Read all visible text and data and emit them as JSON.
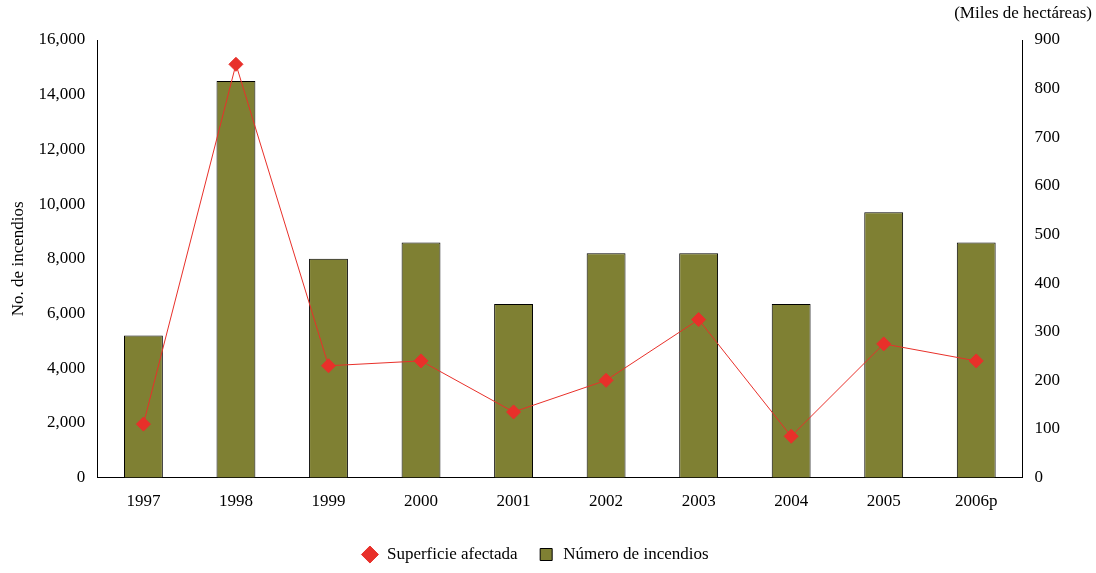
{
  "chart_data": {
    "type": "bar",
    "categories": [
      "1997",
      "1998",
      "1999",
      "2000",
      "2001",
      "2002",
      "2003",
      "2004",
      "2005",
      "2006p"
    ],
    "ylabel": "No. de incendios",
    "y2label": "(Miles de hectáreas)",
    "ylim": [
      0,
      16000
    ],
    "yticks": [
      {
        "value": 0,
        "label": "0"
      },
      {
        "value": 2000,
        "label": "2,000"
      },
      {
        "value": 4000,
        "label": "4,000"
      },
      {
        "value": 6000,
        "label": "6,000"
      },
      {
        "value": 8000,
        "label": "8,000"
      },
      {
        "value": 10000,
        "label": "10,000"
      },
      {
        "value": 12000,
        "label": "12,000"
      },
      {
        "value": 14000,
        "label": "14,000"
      },
      {
        "value": 16000,
        "label": "16,000"
      }
    ],
    "y2lim": [
      0,
      900
    ],
    "y2ticks": [
      0,
      100,
      200,
      300,
      400,
      500,
      600,
      700,
      800,
      900
    ],
    "legend": "bottom",
    "marker": "diamond",
    "line_style": "solid",
    "series": [
      {
        "name": "Superficie afectada",
        "type": "line",
        "axis": "y2",
        "color": "#e8302a",
        "values": [
          110,
          850,
          230,
          240,
          135,
          200,
          325,
          85,
          275,
          240
        ]
      },
      {
        "name": "Número de incendios",
        "color": "#7f8033",
        "values": [
          5200,
          14500,
          8000,
          8600,
          6350,
          8200,
          8200,
          6350,
          9700,
          8600
        ]
      }
    ]
  }
}
